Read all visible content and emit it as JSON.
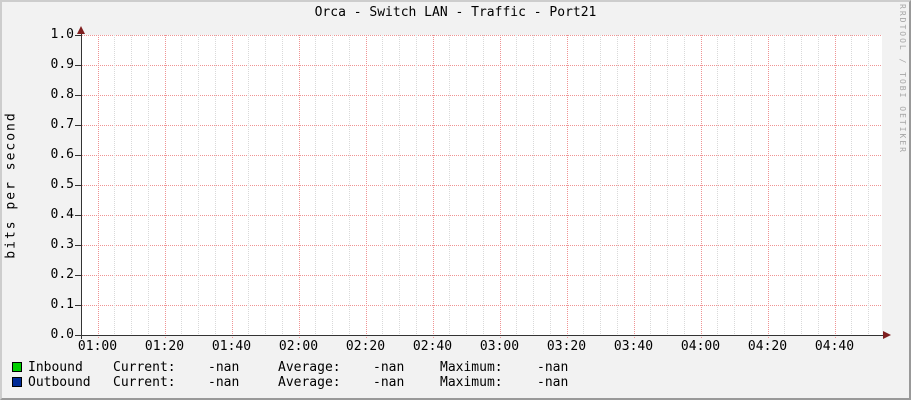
{
  "title": "Orca - Switch LAN - Traffic - Port21",
  "watermark": "RRDTOOL / TOBI OETIKER",
  "chart_data": {
    "type": "line",
    "title": "Orca - Switch LAN - Traffic - Port21",
    "xlabel": "",
    "ylabel": "bits per second",
    "ylim": [
      0.0,
      1.0
    ],
    "y_tick_step": 0.1,
    "y_ticks": [
      "1.0",
      "0.9",
      "0.8",
      "0.7",
      "0.6",
      "0.5",
      "0.4",
      "0.3",
      "0.2",
      "0.1",
      "0.0"
    ],
    "x_ticks": [
      "01:00",
      "01:20",
      "01:40",
      "02:00",
      "02:20",
      "02:40",
      "03:00",
      "03:20",
      "03:40",
      "04:00",
      "04:20",
      "04:40"
    ],
    "grid": true,
    "legend_position": "bottom",
    "series": [
      {
        "name": "Inbound",
        "color": "#00CF00",
        "values": []
      },
      {
        "name": "Outbound",
        "color": "#002A97",
        "values": []
      }
    ]
  },
  "legend": {
    "rows": [
      {
        "label": "Inbound",
        "color": "#00CF00",
        "current_label": "Current:",
        "current": "-nan",
        "average_label": "Average:",
        "average": "-nan",
        "maximum_label": "Maximum:",
        "maximum": "-nan"
      },
      {
        "label": "Outbound",
        "color": "#002A97",
        "current_label": "Current:",
        "current": "-nan",
        "average_label": "Average:",
        "average": "-nan",
        "maximum_label": "Maximum:",
        "maximum": "-nan"
      }
    ]
  },
  "colors": {
    "background": "#f2f2f2",
    "canvas": "#ffffff",
    "major_grid": "#ef9494",
    "minor_grid": "#d9d9d9",
    "axis": "#333333",
    "arrow": "#7f1f1f",
    "text": "#000000",
    "watermark": "#a6a6a6",
    "border_light": "#cdcdcd",
    "border_dark": "#999999"
  }
}
